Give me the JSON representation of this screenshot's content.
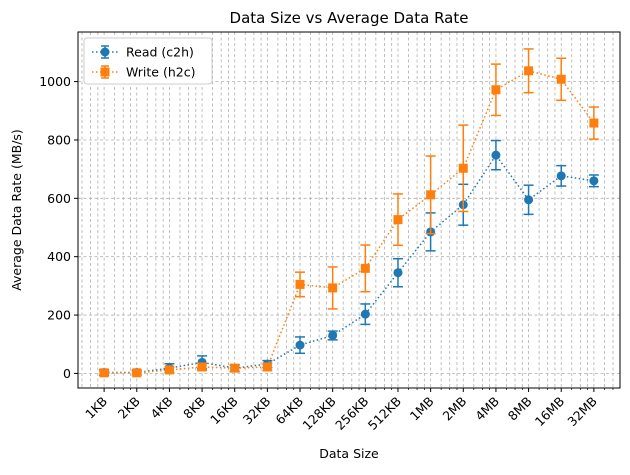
{
  "chart_data": {
    "type": "line",
    "title": "Data Size vs Average Data Rate",
    "xlabel": "Data Size",
    "ylabel": "Average Data Rate (MB/s)",
    "x_scale": "log2",
    "categories": [
      "1KB",
      "2KB",
      "4KB",
      "8KB",
      "16KB",
      "32KB",
      "64KB",
      "128KB",
      "256KB",
      "512KB",
      "1MB",
      "2MB",
      "4MB",
      "8MB",
      "16MB",
      "32MB"
    ],
    "ylim": [
      -50,
      1170
    ],
    "yticks": [
      "0",
      "200",
      "400",
      "600",
      "800",
      "1000"
    ],
    "grid": true,
    "legend_position": "top-left",
    "series": [
      {
        "name": "Read (c2h)",
        "color": "#1f77b4",
        "marker": "circle",
        "linestyle": "dotted",
        "values": [
          3,
          3,
          18,
          38,
          18,
          32,
          97,
          130,
          203,
          345,
          485,
          578,
          748,
          595,
          677,
          660
        ],
        "errors": [
          10,
          8,
          15,
          22,
          12,
          12,
          28,
          15,
          35,
          48,
          65,
          70,
          50,
          50,
          35,
          20
        ]
      },
      {
        "name": "Write (h2c)",
        "color": "#ff7f0e",
        "marker": "square",
        "linestyle": "dotted",
        "values": [
          2,
          2,
          12,
          22,
          18,
          22,
          305,
          293,
          360,
          527,
          612,
          703,
          972,
          1037,
          1008,
          858
        ],
        "errors": [
          5,
          5,
          10,
          12,
          10,
          12,
          42,
          72,
          80,
          88,
          133,
          148,
          88,
          75,
          72,
          55
        ]
      }
    ]
  }
}
